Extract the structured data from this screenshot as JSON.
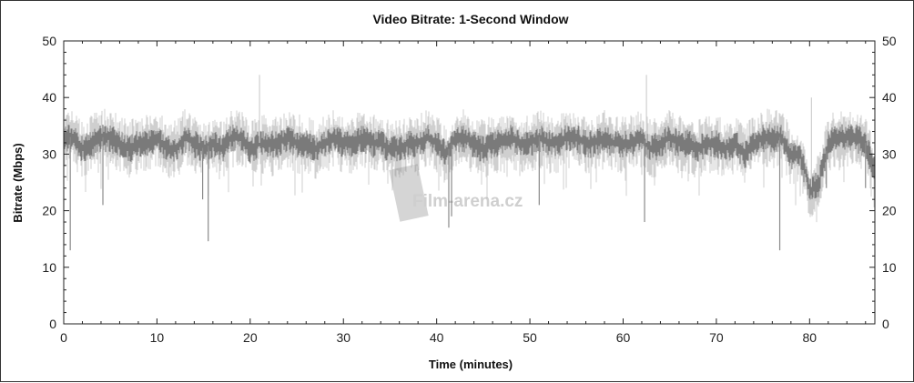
{
  "chart_data": {
    "type": "area",
    "title": "Video Bitrate: 1-Second Window",
    "xlabel": "Time (minutes)",
    "ylabel": "Bitrate (Mbps)",
    "xlim": [
      0,
      87
    ],
    "ylim": [
      0,
      50
    ],
    "xticks": [
      "0",
      "10",
      "20",
      "30",
      "40",
      "50",
      "60",
      "70",
      "80"
    ],
    "yticks": [
      "0",
      "10",
      "20",
      "30",
      "40",
      "50"
    ],
    "grid": false,
    "legend": "none",
    "colors": {
      "peak": "#cfcfcf",
      "average": "#7a7a7a"
    },
    "series": [
      {
        "role": "average",
        "x_step_minutes": 1,
        "values": [
          33,
          33,
          31,
          32,
          33,
          33,
          32,
          31,
          32,
          32,
          33,
          31,
          31,
          33,
          32,
          31,
          32,
          31,
          33,
          33,
          31,
          32,
          32,
          32,
          33,
          32,
          32,
          31,
          32,
          33,
          32,
          32,
          33,
          32,
          32,
          31,
          31,
          32,
          32,
          33,
          32,
          30,
          33,
          33,
          32,
          31,
          32,
          32,
          33,
          32,
          32,
          33,
          32,
          32,
          33,
          33,
          32,
          32,
          33,
          32,
          32,
          32,
          33,
          31,
          32,
          33,
          32,
          32,
          31,
          32,
          32,
          31,
          32,
          30,
          32,
          33,
          33,
          33,
          30,
          30,
          24,
          25,
          32,
          33,
          33,
          33,
          32,
          27
        ]
      },
      {
        "role": "spikes",
        "points": [
          [
            0.7,
            13
          ],
          [
            4.2,
            21
          ],
          [
            14.9,
            22
          ],
          [
            15.5,
            14.6
          ],
          [
            21.0,
            44
          ],
          [
            41.3,
            17
          ],
          [
            41.6,
            19
          ],
          [
            51.0,
            21
          ],
          [
            62.3,
            18
          ],
          [
            62.5,
            44
          ],
          [
            76.8,
            13
          ],
          [
            80.2,
            40
          ],
          [
            81.8,
            24
          ],
          [
            86.0,
            24
          ]
        ]
      }
    ]
  },
  "watermark": "Film-arena.cz"
}
